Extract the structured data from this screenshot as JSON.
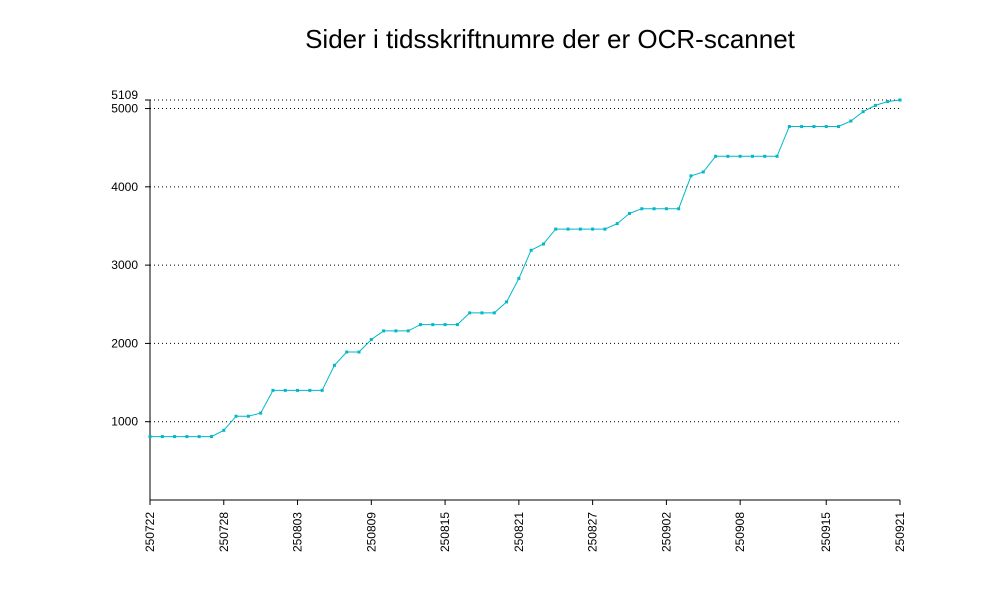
{
  "chart_data": {
    "type": "line",
    "title": "Sider i tidsskriftnumre der er OCR-scannet",
    "xlabel": "",
    "ylabel": "",
    "ylim": [
      0,
      5109
    ],
    "yticks": [
      1000,
      2000,
      3000,
      4000,
      5000,
      5109
    ],
    "xtick_labels": [
      "250722",
      "250728",
      "250803",
      "250809",
      "250815",
      "250821",
      "250827",
      "250902",
      "250908",
      "250915",
      "250921"
    ],
    "grid": "horizontal dotted",
    "line_color": "#00b8c8",
    "x_dates": [
      "2025-07-22",
      "2025-07-23",
      "2025-07-24",
      "2025-07-25",
      "2025-07-26",
      "2025-07-27",
      "2025-07-28",
      "2025-07-29",
      "2025-07-30",
      "2025-07-31",
      "2025-08-01",
      "2025-08-02",
      "2025-08-03",
      "2025-08-04",
      "2025-08-05",
      "2025-08-06",
      "2025-08-07",
      "2025-08-08",
      "2025-08-09",
      "2025-08-10",
      "2025-08-11",
      "2025-08-12",
      "2025-08-13",
      "2025-08-14",
      "2025-08-15",
      "2025-08-16",
      "2025-08-17",
      "2025-08-18",
      "2025-08-19",
      "2025-08-20",
      "2025-08-21",
      "2025-08-22",
      "2025-08-23",
      "2025-08-24",
      "2025-08-25",
      "2025-08-26",
      "2025-08-27",
      "2025-08-28",
      "2025-08-29",
      "2025-08-30",
      "2025-08-31",
      "2025-09-01",
      "2025-09-02",
      "2025-09-03",
      "2025-09-04",
      "2025-09-05",
      "2025-09-06",
      "2025-09-07",
      "2025-09-08",
      "2025-09-09",
      "2025-09-10",
      "2025-09-11",
      "2025-09-12",
      "2025-09-13",
      "2025-09-14",
      "2025-09-15",
      "2025-09-16",
      "2025-09-17",
      "2025-09-18",
      "2025-09-19",
      "2025-09-20",
      "2025-09-21"
    ],
    "values": [
      810,
      810,
      810,
      810,
      810,
      810,
      890,
      1070,
      1070,
      1110,
      1400,
      1400,
      1400,
      1400,
      1400,
      1720,
      1890,
      1890,
      2050,
      2160,
      2160,
      2160,
      2240,
      2240,
      2240,
      2240,
      2390,
      2390,
      2390,
      2530,
      2830,
      3190,
      3270,
      3460,
      3460,
      3460,
      3460,
      3460,
      3530,
      3660,
      3720,
      3720,
      3720,
      3720,
      4140,
      4190,
      4390,
      4390,
      4390,
      4390,
      4390,
      4390,
      4770,
      4770,
      4770,
      4770,
      4770,
      4840,
      4960,
      5040,
      5090,
      5109
    ]
  }
}
